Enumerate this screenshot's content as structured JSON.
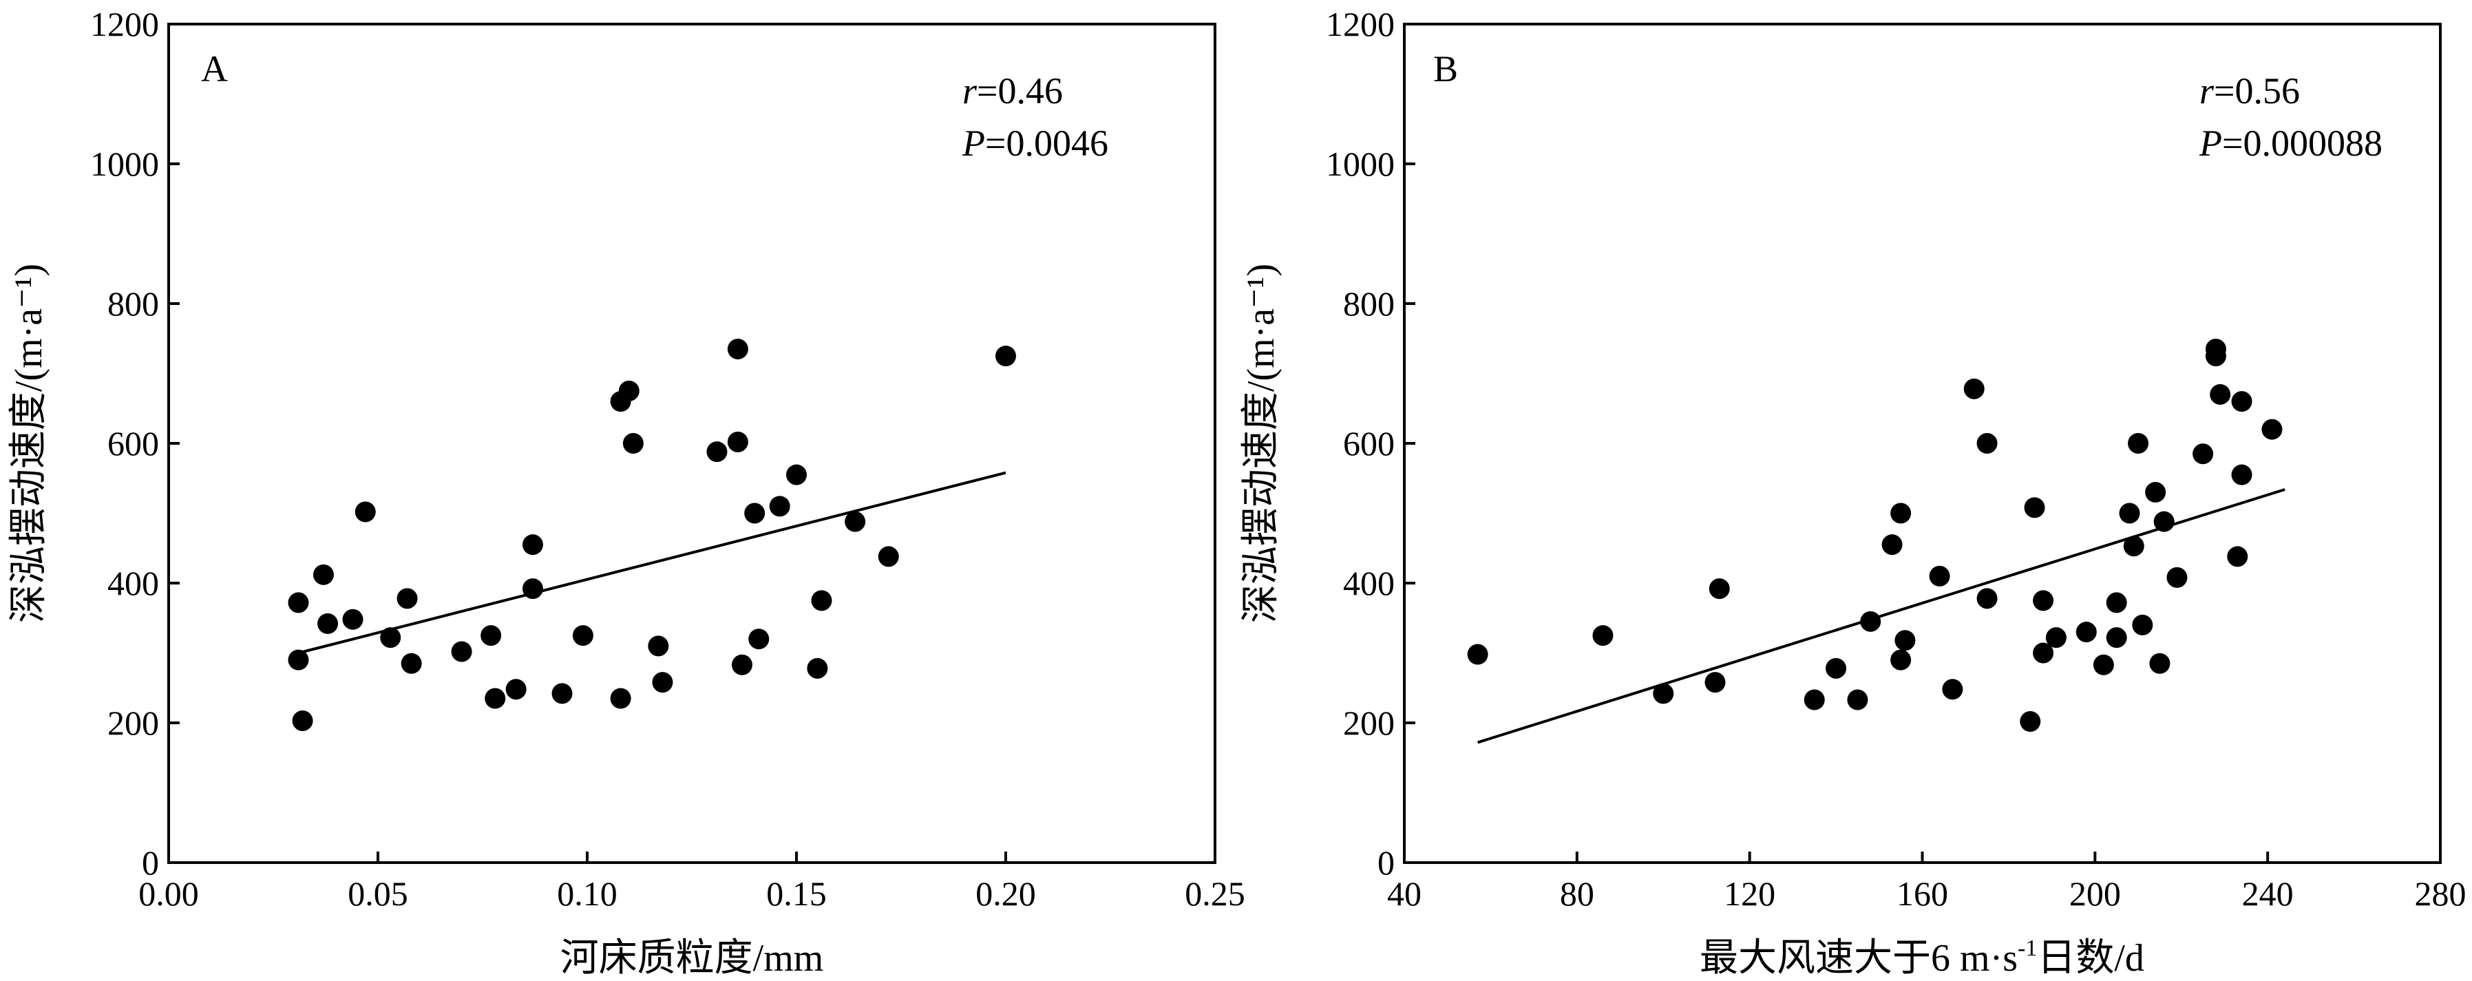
{
  "chart_data": [
    {
      "type": "scatter",
      "panel_label": "A",
      "xlabel": "河床质粒度/mm",
      "ylabel": "深泓摆动速度/(m·a⁻¹)",
      "xlim": [
        0.0,
        0.25
      ],
      "ylim": [
        0,
        1200
      ],
      "x_ticks": [
        0.0,
        0.05,
        0.1,
        0.15,
        0.2,
        0.25
      ],
      "x_tick_labels": [
        "0.00",
        "0.05",
        "0.10",
        "0.15",
        "0.20",
        "0.25"
      ],
      "y_ticks": [
        0,
        200,
        400,
        600,
        800,
        1000,
        1200
      ],
      "y_tick_labels": [
        "0",
        "200",
        "400",
        "600",
        "800",
        "1000",
        "1200"
      ],
      "r_text": "r",
      "r_value": "=0.46",
      "p_text": "P",
      "p_value": "=0.0046",
      "grid": false,
      "trendline": {
        "x": [
          0.031,
          0.2
        ],
        "y": [
          300,
          558
        ]
      },
      "points": [
        {
          "x": 0.031,
          "y": 372
        },
        {
          "x": 0.031,
          "y": 290
        },
        {
          "x": 0.032,
          "y": 203
        },
        {
          "x": 0.037,
          "y": 412
        },
        {
          "x": 0.038,
          "y": 342
        },
        {
          "x": 0.044,
          "y": 348
        },
        {
          "x": 0.047,
          "y": 502
        },
        {
          "x": 0.053,
          "y": 322
        },
        {
          "x": 0.057,
          "y": 378
        },
        {
          "x": 0.058,
          "y": 285
        },
        {
          "x": 0.07,
          "y": 302
        },
        {
          "x": 0.077,
          "y": 325
        },
        {
          "x": 0.078,
          "y": 235
        },
        {
          "x": 0.083,
          "y": 248
        },
        {
          "x": 0.087,
          "y": 455
        },
        {
          "x": 0.087,
          "y": 392
        },
        {
          "x": 0.094,
          "y": 242
        },
        {
          "x": 0.099,
          "y": 325
        },
        {
          "x": 0.108,
          "y": 235
        },
        {
          "x": 0.108,
          "y": 660
        },
        {
          "x": 0.11,
          "y": 675
        },
        {
          "x": 0.111,
          "y": 600
        },
        {
          "x": 0.117,
          "y": 310
        },
        {
          "x": 0.118,
          "y": 258
        },
        {
          "x": 0.131,
          "y": 588
        },
        {
          "x": 0.136,
          "y": 735
        },
        {
          "x": 0.136,
          "y": 602
        },
        {
          "x": 0.137,
          "y": 283
        },
        {
          "x": 0.14,
          "y": 500
        },
        {
          "x": 0.141,
          "y": 320
        },
        {
          "x": 0.146,
          "y": 510
        },
        {
          "x": 0.15,
          "y": 555
        },
        {
          "x": 0.155,
          "y": 278
        },
        {
          "x": 0.156,
          "y": 375
        },
        {
          "x": 0.164,
          "y": 488
        },
        {
          "x": 0.172,
          "y": 438
        },
        {
          "x": 0.2,
          "y": 725
        }
      ]
    },
    {
      "type": "scatter",
      "panel_label": "B",
      "xlabel_main": "最大风速大于6 m·s",
      "xlabel_sup": "-1",
      "xlabel_tail": "日数/d",
      "ylabel": "深泓摆动速度/(m·a⁻¹)",
      "xlim": [
        40,
        280
      ],
      "ylim": [
        0,
        1200
      ],
      "x_ticks": [
        40,
        80,
        120,
        160,
        200,
        240,
        280
      ],
      "x_tick_labels": [
        "40",
        "80",
        "120",
        "160",
        "200",
        "240",
        "280"
      ],
      "y_ticks": [
        0,
        200,
        400,
        600,
        800,
        1000,
        1200
      ],
      "y_tick_labels": [
        "0",
        "200",
        "400",
        "600",
        "800",
        "1000",
        "1200"
      ],
      "r_text": "r",
      "r_value": "=0.56",
      "p_text": "P",
      "p_value": "=0.000088",
      "grid": false,
      "trendline": {
        "x": [
          57,
          244
        ],
        "y": [
          172,
          534
        ]
      },
      "points": [
        {
          "x": 57,
          "y": 298
        },
        {
          "x": 86,
          "y": 325
        },
        {
          "x": 100,
          "y": 242
        },
        {
          "x": 112,
          "y": 258
        },
        {
          "x": 113,
          "y": 392
        },
        {
          "x": 135,
          "y": 233
        },
        {
          "x": 140,
          "y": 278
        },
        {
          "x": 145,
          "y": 233
        },
        {
          "x": 148,
          "y": 345
        },
        {
          "x": 153,
          "y": 455
        },
        {
          "x": 155,
          "y": 500
        },
        {
          "x": 155,
          "y": 290
        },
        {
          "x": 156,
          "y": 318
        },
        {
          "x": 164,
          "y": 410
        },
        {
          "x": 167,
          "y": 248
        },
        {
          "x": 172,
          "y": 678
        },
        {
          "x": 175,
          "y": 600
        },
        {
          "x": 175,
          "y": 378
        },
        {
          "x": 185,
          "y": 202
        },
        {
          "x": 186,
          "y": 508
        },
        {
          "x": 188,
          "y": 375
        },
        {
          "x": 188,
          "y": 300
        },
        {
          "x": 191,
          "y": 322
        },
        {
          "x": 198,
          "y": 330
        },
        {
          "x": 202,
          "y": 283
        },
        {
          "x": 205,
          "y": 372
        },
        {
          "x": 205,
          "y": 322
        },
        {
          "x": 208,
          "y": 500
        },
        {
          "x": 209,
          "y": 453
        },
        {
          "x": 210,
          "y": 600
        },
        {
          "x": 211,
          "y": 340
        },
        {
          "x": 214,
          "y": 530
        },
        {
          "x": 215,
          "y": 285
        },
        {
          "x": 216,
          "y": 488
        },
        {
          "x": 219,
          "y": 408
        },
        {
          "x": 225,
          "y": 585
        },
        {
          "x": 228,
          "y": 735
        },
        {
          "x": 228,
          "y": 725
        },
        {
          "x": 229,
          "y": 670
        },
        {
          "x": 233,
          "y": 438
        },
        {
          "x": 234,
          "y": 660
        },
        {
          "x": 234,
          "y": 555
        },
        {
          "x": 241,
          "y": 620
        }
      ]
    }
  ]
}
